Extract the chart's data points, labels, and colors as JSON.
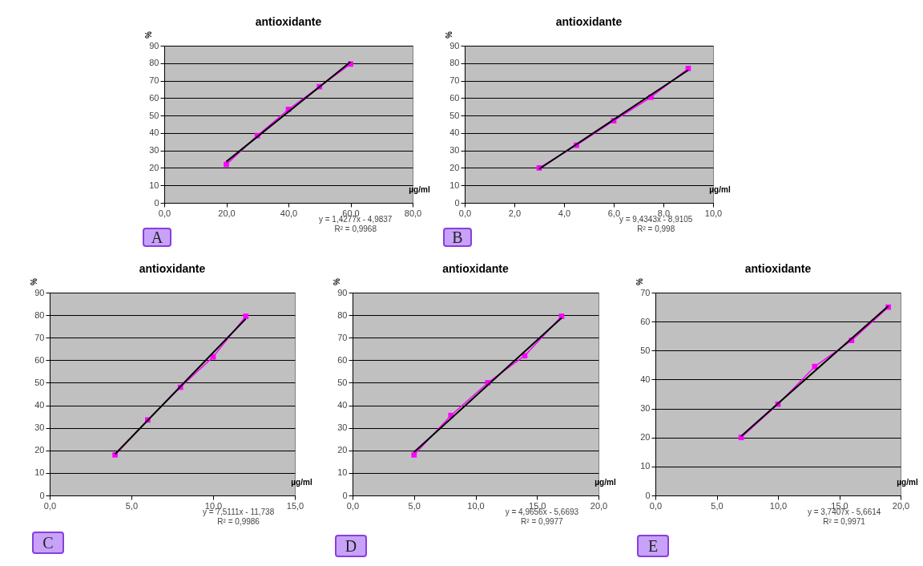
{
  "chart_data": [
    {
      "type": "line",
      "title": "antioxidante",
      "xlabel": "µg/ml",
      "ylabel": "%",
      "xlim": [
        0,
        80
      ],
      "xticks": [
        {
          "value": 0,
          "label": "0,0"
        },
        {
          "value": 20,
          "label": "20,0"
        },
        {
          "value": 40,
          "label": "40,0"
        },
        {
          "value": 60,
          "label": "60,0"
        },
        {
          "value": 80,
          "label": "80,0"
        }
      ],
      "ylim": [
        0,
        90
      ],
      "yticks": [
        0,
        10,
        20,
        30,
        40,
        50,
        60,
        70,
        80,
        90
      ],
      "grid": "y",
      "annotations": [
        "A",
        "y = 1,4277x - 4,9837",
        "R² = 0,9968"
      ],
      "series": [
        {
          "color": "#ff00ff",
          "marker": "square",
          "x": [
            20,
            30,
            40,
            50,
            60
          ],
          "values": [
            22,
            38.5,
            53.5,
            66.5,
            79.5
          ]
        },
        {
          "color": "#000000",
          "marker": "none",
          "x": [
            20,
            60
          ],
          "values": [
            23.6,
            80.7
          ]
        }
      ]
    },
    {
      "type": "line",
      "title": "antioxidante",
      "xlabel": "µg/ml",
      "ylabel": "%",
      "xlim": [
        0,
        10
      ],
      "xticks": [
        {
          "value": 0,
          "label": "0,0"
        },
        {
          "value": 2,
          "label": "2,0"
        },
        {
          "value": 4,
          "label": "4,0"
        },
        {
          "value": 6,
          "label": "6,0"
        },
        {
          "value": 8,
          "label": "8,0"
        },
        {
          "value": 10,
          "label": "10,0"
        }
      ],
      "ylim": [
        0,
        90
      ],
      "yticks": [
        0,
        10,
        20,
        30,
        40,
        50,
        60,
        70,
        80,
        90
      ],
      "grid": "y",
      "annotations": [
        "B",
        "y = 9,4343x - 8,9105",
        "R² = 0,998"
      ],
      "series": [
        {
          "color": "#ff00ff",
          "marker": "square",
          "x": [
            3,
            4.5,
            6,
            7.5,
            9
          ],
          "values": [
            20,
            33,
            47,
            60.5,
            77
          ]
        },
        {
          "color": "#000000",
          "marker": "none",
          "x": [
            3,
            9
          ],
          "values": [
            19.4,
            76
          ]
        }
      ]
    },
    {
      "type": "line",
      "title": "antioxidante",
      "xlabel": "µg/ml",
      "ylabel": "%",
      "xlim": [
        0,
        15
      ],
      "xticks": [
        {
          "value": 0,
          "label": "0,0"
        },
        {
          "value": 5,
          "label": "5,0"
        },
        {
          "value": 10,
          "label": "10,0"
        },
        {
          "value": 15,
          "label": "15,0"
        }
      ],
      "ylim": [
        0,
        90
      ],
      "yticks": [
        0,
        10,
        20,
        30,
        40,
        50,
        60,
        70,
        80,
        90
      ],
      "grid": "y",
      "annotations": [
        "C",
        "y = 7,5111x - 11,738",
        "R² = 0,9986"
      ],
      "series": [
        {
          "color": "#ff00ff",
          "marker": "square",
          "x": [
            4,
            6,
            8,
            10,
            12
          ],
          "values": [
            18,
            33.5,
            48,
            61.5,
            79.5
          ]
        },
        {
          "color": "#000000",
          "marker": "none",
          "x": [
            4,
            12
          ],
          "values": [
            18.3,
            78.4
          ]
        }
      ]
    },
    {
      "type": "line",
      "title": "antioxidante",
      "xlabel": "µg/ml",
      "ylabel": "%",
      "xlim": [
        0,
        20
      ],
      "xticks": [
        {
          "value": 0,
          "label": "0,0"
        },
        {
          "value": 5,
          "label": "5,0"
        },
        {
          "value": 10,
          "label": "10,0"
        },
        {
          "value": 15,
          "label": "15,0"
        },
        {
          "value": 20,
          "label": "20,0"
        }
      ],
      "ylim": [
        0,
        90
      ],
      "yticks": [
        0,
        10,
        20,
        30,
        40,
        50,
        60,
        70,
        80,
        90
      ],
      "grid": "y",
      "annotations": [
        "D",
        "y = 4,9656x - 5,6693",
        "R² = 0,9977"
      ],
      "series": [
        {
          "color": "#ff00ff",
          "marker": "square",
          "x": [
            5,
            8,
            11,
            14,
            17
          ],
          "values": [
            18,
            35.5,
            50,
            62,
            79.5
          ]
        },
        {
          "color": "#000000",
          "marker": "none",
          "x": [
            5,
            17
          ],
          "values": [
            19.2,
            78.8
          ]
        }
      ]
    },
    {
      "type": "line",
      "title": "antioxidante",
      "xlabel": "µg/ml",
      "ylabel": "%",
      "xlim": [
        0,
        20
      ],
      "xticks": [
        {
          "value": 0,
          "label": "0,0"
        },
        {
          "value": 5,
          "label": "5,0"
        },
        {
          "value": 10,
          "label": "10,0"
        },
        {
          "value": 15,
          "label": "15,0"
        },
        {
          "value": 20,
          "label": "20,0"
        }
      ],
      "ylim": [
        0,
        70
      ],
      "yticks": [
        0,
        10,
        20,
        30,
        40,
        50,
        60,
        70
      ],
      "grid": "y",
      "annotations": [
        "E",
        "y = 3,7407x - 5,6614",
        "R² = 0,9971"
      ],
      "series": [
        {
          "color": "#ff00ff",
          "marker": "square",
          "x": [
            7,
            10,
            13,
            16,
            19
          ],
          "values": [
            20,
            31.5,
            44.5,
            53.5,
            65
          ]
        },
        {
          "color": "#000000",
          "marker": "none",
          "x": [
            7,
            19
          ],
          "values": [
            20.5,
            65.4
          ]
        }
      ]
    }
  ]
}
